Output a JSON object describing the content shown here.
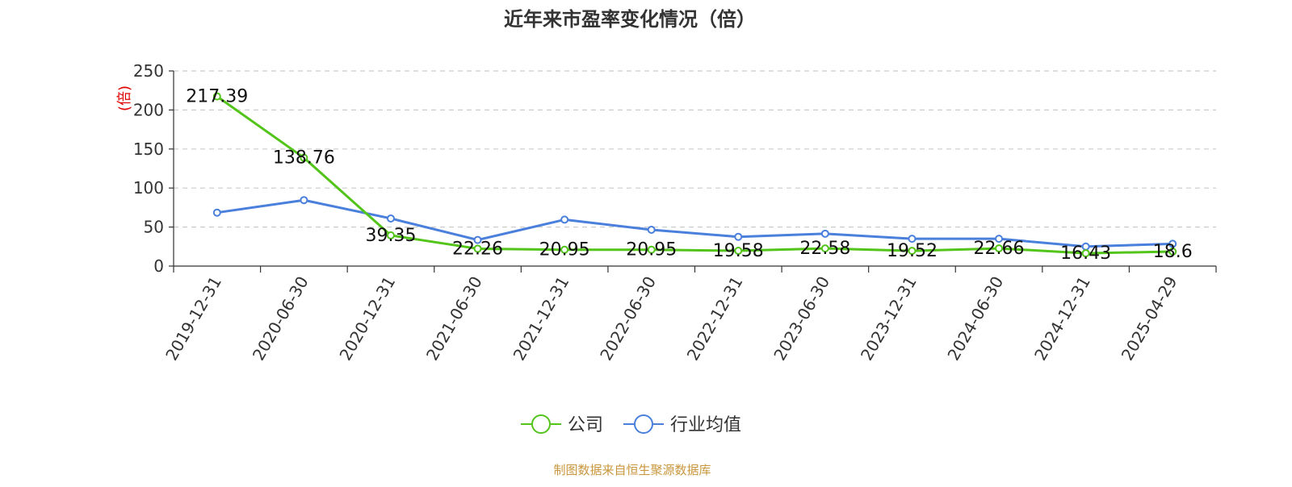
{
  "chart_data": {
    "type": "line",
    "title": "近年来市盈率变化情况（倍）",
    "ylabel": "(倍)",
    "xlabel": "",
    "categories": [
      "2019-12-31",
      "2020-06-30",
      "2020-12-31",
      "2021-06-30",
      "2021-12-31",
      "2022-06-30",
      "2022-12-31",
      "2023-06-30",
      "2023-12-31",
      "2024-06-30",
      "2024-12-31",
      "2025-04-29"
    ],
    "ylim": [
      0,
      250
    ],
    "yticks": [
      0,
      50,
      100,
      150,
      200,
      250
    ],
    "grid": true,
    "legend_position": "bottom-center",
    "series": [
      {
        "name": "公司",
        "color": "#52c41a",
        "values": [
          217.39,
          138.76,
          39.35,
          22.26,
          20.95,
          20.95,
          19.58,
          22.58,
          19.52,
          22.66,
          16.43,
          18.6
        ],
        "labels": [
          "217.39",
          "138.76",
          "39.35",
          "22.26",
          "20.95",
          "20.95",
          "19.58",
          "22.58",
          "19.52",
          "22.66",
          "16.43",
          "18.6"
        ]
      },
      {
        "name": "行业均值",
        "color": "#4a7fdc",
        "values": [
          68.5,
          84.5,
          61.0,
          33.5,
          59.5,
          46.5,
          37.5,
          41.5,
          35.0,
          35.0,
          25.0,
          28.5
        ]
      }
    ]
  },
  "source_note": "制图数据来自恒生聚源数据库"
}
